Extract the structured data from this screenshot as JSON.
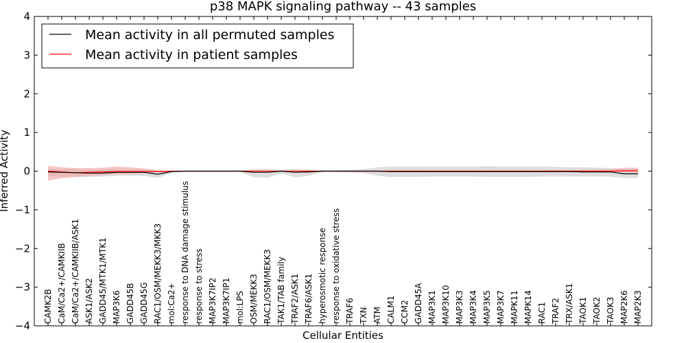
{
  "chart_data": {
    "type": "line",
    "title": "p38 MAPK signaling pathway -- 43 samples",
    "xlabel": "Cellular Entities",
    "ylabel": "Inferred Activity",
    "ylim": [
      -4,
      4
    ],
    "yticks": [
      4,
      3,
      2,
      1,
      0,
      -1,
      -2,
      -3,
      -4
    ],
    "ytick_labels": [
      "4",
      "3",
      "2",
      "1",
      "0",
      "−1",
      "−2",
      "−3",
      "−4"
    ],
    "legend_position": "top-left",
    "categories": [
      "CAMK2B",
      "CaM/Ca2+/CAMKIIB",
      "CaM/Ca2+/CAMKIIB/ASK1",
      "ASK1/ASK2",
      "GADD45/MTK1/MTK1",
      "MAP3K6",
      "GADD45B",
      "GADD45G",
      "RAC1/OSM/MEKK3/MKK3",
      "mol:Ca2+",
      "response to DNA damage stimulus",
      "response to stress",
      "MAP3K7IP2",
      "MAP3K7IP1",
      "mol:LPS",
      "OSM/MEKK3",
      "RAC1/OSM/MEKK3",
      "TAK1/TAB family",
      "TRAF2/ASK1",
      "TRAF6/ASK1",
      "hyperosmotic response",
      "response to oxidative stress",
      "TRAF6",
      "TXN",
      "ATM",
      "CALM1",
      "CCM2",
      "GADD45A",
      "MAP3K1",
      "MAP3K10",
      "MAP3K3",
      "MAP3K4",
      "MAP3K5",
      "MAP3K7",
      "MAPK11",
      "MAPK14",
      "RAC1",
      "TRAF2",
      "TRX/ASK1",
      "TAOK1",
      "TAOK2",
      "TAOK3",
      "MAP2K6",
      "MAP2K3"
    ],
    "series": [
      {
        "name": "Mean activity in all permuted samples",
        "color": "#000000",
        "band_color": "#c8c8c8",
        "values": [
          -0.02,
          -0.03,
          -0.04,
          -0.05,
          -0.05,
          -0.03,
          -0.03,
          -0.03,
          -0.08,
          -0.01,
          0,
          0,
          0,
          0,
          0,
          -0.03,
          -0.03,
          0,
          -0.03,
          -0.02,
          0,
          0,
          0,
          0,
          0,
          -0.01,
          -0.01,
          -0.01,
          -0.01,
          -0.01,
          -0.01,
          -0.01,
          -0.01,
          -0.01,
          -0.01,
          -0.01,
          -0.01,
          -0.01,
          -0.01,
          -0.02,
          -0.02,
          -0.02,
          -0.07,
          -0.07
        ],
        "lower": [
          -0.12,
          -0.14,
          -0.15,
          -0.15,
          -0.14,
          -0.12,
          -0.12,
          -0.12,
          -0.18,
          -0.04,
          -0.01,
          -0.01,
          -0.01,
          -0.01,
          -0.02,
          -0.16,
          -0.17,
          -0.06,
          -0.16,
          -0.12,
          -0.02,
          -0.02,
          -0.03,
          -0.05,
          -0.12,
          -0.15,
          -0.15,
          -0.15,
          -0.14,
          -0.14,
          -0.14,
          -0.14,
          -0.15,
          -0.15,
          -0.15,
          -0.15,
          -0.14,
          -0.14,
          -0.14,
          -0.14,
          -0.14,
          -0.14,
          -0.18,
          -0.18
        ],
        "upper": [
          0.06,
          0.06,
          0.06,
          0.05,
          0.05,
          0.06,
          0.06,
          0.05,
          0.01,
          0.01,
          0.01,
          0.01,
          0.01,
          0.01,
          0.02,
          0.06,
          0.06,
          0.04,
          0.06,
          0.05,
          0.02,
          0.02,
          0.03,
          0.05,
          0.1,
          0.12,
          0.12,
          0.12,
          0.12,
          0.12,
          0.12,
          0.12,
          0.13,
          0.12,
          0.12,
          0.12,
          0.12,
          0.11,
          0.1,
          0.1,
          0.09,
          0.08,
          0.05,
          0.05
        ]
      },
      {
        "name": "Mean activity in patient samples",
        "color": "#ff0000",
        "band_color": "#f4a0a0",
        "values": [
          0,
          -0.02,
          -0.04,
          -0.03,
          -0.02,
          -0.01,
          -0.01,
          -0.01,
          -0.01,
          0,
          0,
          0,
          0,
          0,
          0,
          0,
          0,
          0,
          0,
          0,
          0,
          0,
          0,
          0,
          0,
          0,
          0,
          0,
          0,
          0,
          0,
          0,
          0,
          0,
          0,
          0,
          0,
          0,
          0,
          0,
          0,
          0,
          0.01,
          0.01
        ],
        "lower": [
          -0.25,
          -0.18,
          -0.15,
          -0.12,
          -0.1,
          -0.08,
          -0.07,
          -0.05,
          -0.03,
          -0.01,
          -0.01,
          -0.01,
          -0.01,
          -0.01,
          -0.01,
          -0.01,
          -0.01,
          -0.01,
          -0.01,
          -0.01,
          -0.01,
          -0.01,
          -0.01,
          -0.01,
          -0.01,
          -0.02,
          -0.02,
          -0.02,
          -0.02,
          -0.02,
          -0.02,
          -0.02,
          -0.02,
          -0.02,
          -0.02,
          -0.02,
          -0.02,
          -0.02,
          -0.02,
          -0.02,
          -0.02,
          -0.02,
          -0.03,
          -0.03
        ],
        "upper": [
          0.14,
          0.1,
          0.08,
          0.08,
          0.09,
          0.12,
          0.1,
          0.07,
          0.03,
          0.01,
          0.01,
          0.01,
          0.01,
          0.01,
          0.01,
          0.01,
          0.01,
          0.01,
          0.01,
          0.01,
          0.01,
          0.01,
          0.01,
          0.01,
          0.01,
          0.02,
          0.02,
          0.02,
          0.02,
          0.02,
          0.02,
          0.02,
          0.02,
          0.02,
          0.02,
          0.02,
          0.02,
          0.03,
          0.03,
          0.03,
          0.04,
          0.05,
          0.09,
          0.09
        ]
      }
    ]
  }
}
